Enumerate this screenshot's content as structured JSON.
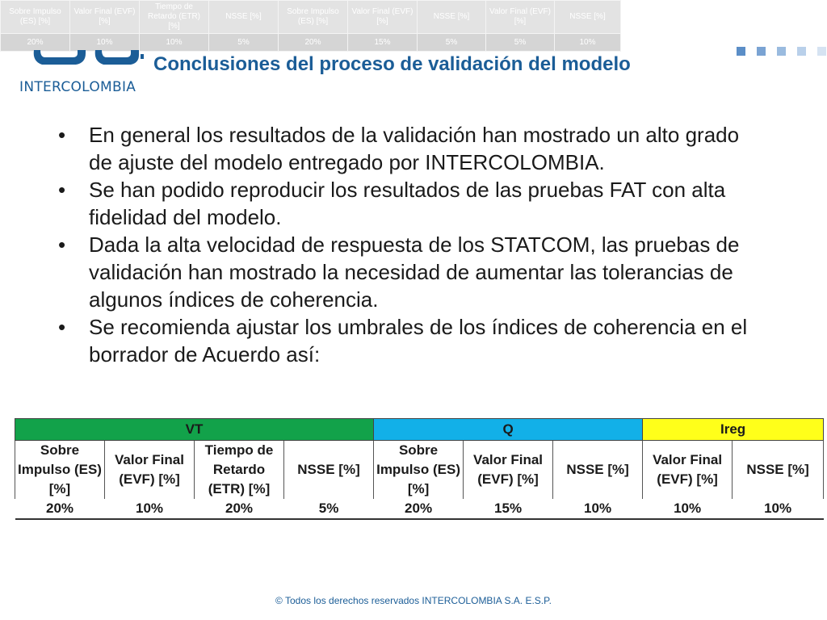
{
  "overlay_table": {
    "headers": [
      "Sobre Impulso (ES) [%]",
      "Valor Final (EVF) [%]",
      "Tiempo de Retardo (ETR) [%]",
      "NSSE [%]",
      "Sobre Impulso (ES) [%]",
      "Valor Final (EVF) [%]",
      "NSSE [%]",
      "Valor Final (EVF) [%]",
      "NSSE [%]"
    ],
    "values": [
      "20%",
      "10%",
      "10%",
      "5%",
      "20%",
      "15%",
      "5%",
      "5%",
      "10%"
    ]
  },
  "logo": {
    "text": "INTERCOLOMBIA"
  },
  "title": "Conclusiones del proceso de validación del modelo",
  "bullets": [
    "En general los resultados de la validación han mostrado un alto grado de ajuste del modelo entregado por INTERCOLOMBIA.",
    "Se han podido reproducir los resultados de las pruebas FAT con alta fidelidad del modelo.",
    "Dada la alta velocidad de respuesta de los STATCOM, las pruebas de validación han mostrado la necesidad de aumentar las tolerancias de algunos índices de coherencia.",
    "Se recomienda ajustar los umbrales de los índices de coherencia en el borrador de Acuerdo así:"
  ],
  "bullet_symbol": "•",
  "table": {
    "groups": [
      "VT",
      "Q",
      "Ireg"
    ],
    "headers": [
      "Sobre Impulso (ES) [%]",
      "Valor Final (EVF) [%]",
      "Tiempo de Retardo (ETR) [%]",
      "NSSE [%]",
      "Sobre Impulso (ES) [%]",
      "Valor Final (EVF) [%]",
      "NSSE [%]",
      "Valor Final (EVF) [%]",
      "NSSE [%]"
    ],
    "values": [
      "20%",
      "10%",
      "20%",
      "5%",
      "20%",
      "15%",
      "10%",
      "10%",
      "10%"
    ]
  },
  "colors": {
    "vt": "#12a24a",
    "q": "#12b0e8",
    "ireg": "#ffff1a",
    "brand": "#1b5d97"
  },
  "footer": "© Todos los derechos reservados INTERCOLOMBIA S.A. E.S.P."
}
